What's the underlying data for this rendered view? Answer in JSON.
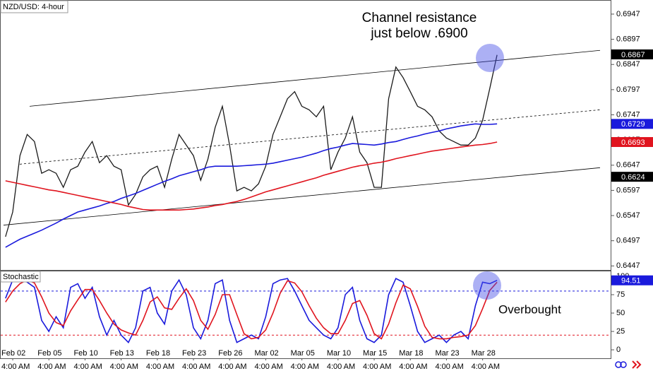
{
  "chart_data": [
    {
      "type": "line",
      "title": "NZD/USD: 4-hour",
      "annotation": [
        "Channel resistance",
        "just below .6900"
      ],
      "ylim": [
        0.6439,
        0.6975
      ],
      "yticks": [
        0.6947,
        0.6897,
        0.6847,
        0.6797,
        0.6747,
        0.6697,
        0.6647,
        0.6597,
        0.6547,
        0.6497,
        0.6447
      ],
      "series": [
        {
          "color": "#1a1a1a",
          "values": [
            0.6505,
            0.6554,
            0.6666,
            0.6708,
            0.6694,
            0.6631,
            0.6638,
            0.6631,
            0.6603,
            0.6638,
            0.6645,
            0.6673,
            0.6694,
            0.6652,
            0.6666,
            0.6645,
            0.6638,
            0.6568,
            0.6589,
            0.6624,
            0.6638,
            0.6645,
            0.6603,
            0.6659,
            0.6708,
            0.6687,
            0.6666,
            0.6617,
            0.6659,
            0.6722,
            0.6764,
            0.6687,
            0.6596,
            0.6603,
            0.6596,
            0.661,
            0.6645,
            0.6708,
            0.6743,
            0.6779,
            0.6793,
            0.6764,
            0.6757,
            0.6743,
            0.6764,
            0.6638,
            0.6673,
            0.6701,
            0.6743,
            0.6673,
            0.6652,
            0.6603,
            0.6603,
            0.6779,
            0.6842,
            0.6821,
            0.6793,
            0.6764,
            0.6757,
            0.6743,
            0.6715,
            0.6701,
            0.6694,
            0.6687,
            0.6687,
            0.6701,
            0.6736,
            0.68,
            0.6866
          ]
        },
        {
          "color": "#1a1adc",
          "values": [
            0.6484,
            0.6492,
            0.65,
            0.6506,
            0.6512,
            0.6518,
            0.6525,
            0.6532,
            0.654,
            0.6547,
            0.6554,
            0.6558,
            0.6562,
            0.6566,
            0.6571,
            0.6575,
            0.6581,
            0.6586,
            0.6591,
            0.6597,
            0.6603,
            0.6609,
            0.6615,
            0.662,
            0.6626,
            0.663,
            0.6634,
            0.6638,
            0.6643,
            0.6645,
            0.6645,
            0.6645,
            0.6645,
            0.6646,
            0.6647,
            0.6648,
            0.6649,
            0.6651,
            0.6654,
            0.6657,
            0.666,
            0.6663,
            0.6667,
            0.6671,
            0.6676,
            0.668,
            0.6683,
            0.6687,
            0.669,
            0.6689,
            0.6688,
            0.6687,
            0.6689,
            0.6692,
            0.6694,
            0.6698,
            0.6702,
            0.6705,
            0.6709,
            0.6712,
            0.6715,
            0.6719,
            0.6722,
            0.6725,
            0.6727,
            0.6729,
            0.6728,
            0.6728,
            0.6729
          ]
        },
        {
          "color": "#e0141e",
          "values": [
            0.6616,
            0.6613,
            0.661,
            0.6607,
            0.6604,
            0.6601,
            0.6598,
            0.6596,
            0.6593,
            0.659,
            0.6587,
            0.6584,
            0.6581,
            0.6578,
            0.6575,
            0.6572,
            0.6569,
            0.6565,
            0.6562,
            0.6559,
            0.6558,
            0.6558,
            0.6558,
            0.6558,
            0.6558,
            0.6559,
            0.656,
            0.6562,
            0.6564,
            0.6567,
            0.6569,
            0.6572,
            0.6575,
            0.6579,
            0.6584,
            0.6589,
            0.6594,
            0.6598,
            0.6602,
            0.6606,
            0.661,
            0.6614,
            0.6618,
            0.6622,
            0.6627,
            0.6631,
            0.6635,
            0.6639,
            0.6643,
            0.6646,
            0.6648,
            0.6651,
            0.6653,
            0.6656,
            0.666,
            0.6663,
            0.6666,
            0.6669,
            0.6672,
            0.6675,
            0.6677,
            0.6679,
            0.6681,
            0.6683,
            0.6685,
            0.6687,
            0.6688,
            0.669,
            0.6693
          ]
        }
      ],
      "channel_lines": [
        {
          "values": [
            0.6764,
            0.6875
          ],
          "dashed": false
        },
        {
          "values": [
            0.6649,
            0.6757
          ],
          "dashed": true
        },
        {
          "values": [
            0.6528,
            0.6642
          ],
          "dashed": false
        }
      ],
      "price_labels": [
        {
          "value": 0.6867,
          "color": "#000000"
        },
        {
          "value": 0.6729,
          "color": "#1a1adc"
        },
        {
          "value": 0.6693,
          "color": "#e0141e"
        },
        {
          "value": 0.6624,
          "color": "#000000"
        }
      ]
    },
    {
      "type": "line",
      "title": "Stochastic",
      "annotation": "Overbought",
      "ylim": [
        -11.5,
        107.7
      ],
      "yticks": [
        0,
        25,
        50,
        75,
        100
      ],
      "levels": [
        {
          "value": 80,
          "color": "#1a1adc"
        },
        {
          "value": 20,
          "color": "#e0141e"
        }
      ],
      "categories": [
        null,
        "Feb 02",
        null,
        null,
        null,
        null,
        "Feb 05",
        null,
        null,
        null,
        null,
        "Feb 10",
        null,
        null,
        null,
        null,
        "Feb 13",
        null,
        null,
        null,
        null,
        "Feb 18",
        null,
        null,
        null,
        null,
        "Feb 23",
        null,
        null,
        null,
        null,
        "Feb 26",
        null,
        null,
        null,
        null,
        "Mar 02",
        null,
        null,
        null,
        null,
        "Mar 05",
        null,
        null,
        null,
        null,
        "Mar 10",
        null,
        null,
        null,
        null,
        "Mar 15",
        null,
        null,
        null,
        null,
        "Mar 18",
        null,
        null,
        null,
        null,
        "Mar 23",
        null,
        null,
        null,
        null,
        "Mar 28",
        null,
        null
      ],
      "time_labels": [
        null,
        "4:00 AM",
        null,
        null,
        null,
        null,
        "4:00 AM",
        null,
        null,
        null,
        null,
        "4:00 AM",
        null,
        null,
        null,
        null,
        "4:00 AM",
        null,
        null,
        null,
        null,
        "4:00 AM",
        null,
        null,
        null,
        null,
        "4:00 AM",
        null,
        null,
        null,
        null,
        "4:00 AM",
        null,
        null,
        null,
        null,
        "4:00 AM",
        null,
        null,
        null,
        null,
        "4:00 AM",
        null,
        null,
        null,
        null,
        "4:00 AM",
        null,
        null,
        null,
        null,
        "4:00 AM",
        null,
        null,
        null,
        null,
        "4:00 AM",
        null,
        null,
        null,
        null,
        "4:00 AM",
        null,
        null,
        null,
        null,
        "4:00 AM",
        null,
        null
      ],
      "series": [
        {
          "color": "#1a1adc",
          "values": [
            70,
            95,
            97,
            92,
            85,
            40,
            25,
            45,
            30,
            85,
            90,
            70,
            85,
            45,
            20,
            40,
            20,
            10,
            30,
            80,
            85,
            50,
            35,
            80,
            95,
            75,
            30,
            15,
            40,
            90,
            95,
            40,
            10,
            15,
            20,
            15,
            45,
            90,
            95,
            97,
            80,
            60,
            40,
            30,
            20,
            15,
            30,
            75,
            85,
            40,
            15,
            10,
            20,
            75,
            97,
            92,
            60,
            25,
            10,
            15,
            20,
            10,
            20,
            25,
            15,
            60,
            92,
            90,
            94.51
          ]
        },
        {
          "color": "#e0141e",
          "values": [
            65,
            80,
            90,
            95,
            91,
            72,
            50,
            37,
            33,
            53,
            68,
            82,
            82,
            67,
            50,
            35,
            27,
            23,
            20,
            40,
            65,
            72,
            57,
            55,
            70,
            83,
            67,
            40,
            28,
            48,
            75,
            75,
            48,
            22,
            15,
            17,
            27,
            50,
            77,
            94,
            91,
            79,
            60,
            43,
            30,
            22,
            22,
            40,
            63,
            67,
            47,
            22,
            15,
            35,
            64,
            88,
            83,
            59,
            32,
            17,
            15,
            15,
            17,
            18,
            20,
            33,
            56,
            81,
            92
          ]
        }
      ],
      "price_labels": [
        {
          "value": 94.51,
          "color": "#1a1adc"
        }
      ]
    }
  ]
}
